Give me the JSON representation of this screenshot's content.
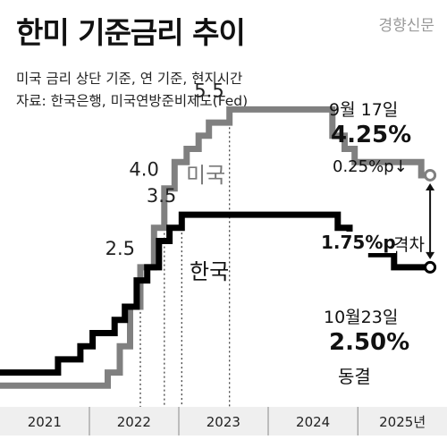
{
  "title": "한미 기준금리 추이",
  "publisher": "경향신문",
  "subtitle": "미국 금리 상단 기준, 연 기준, 현지시간",
  "source": "자료: 한국은행, 미국연방준비제도(Fed)",
  "colors": {
    "us": "#808080",
    "korea": "#000000",
    "axis_band": "#efefef",
    "background": "#ffffff"
  },
  "chart_data": {
    "type": "line",
    "step": true,
    "x_ticks": [
      "2021",
      "2022",
      "2023",
      "2024",
      "2025년"
    ],
    "xlim": [
      "2021-01-01",
      "2025-12-31"
    ],
    "ylim": [
      0,
      6
    ],
    "series": [
      {
        "name": "미국",
        "color": "#808080",
        "points": [
          [
            "2021-01-01",
            0.25
          ],
          [
            "2022-03-17",
            0.5
          ],
          [
            "2022-05-05",
            1.0
          ],
          [
            "2022-06-16",
            1.75
          ],
          [
            "2022-07-28",
            2.5
          ],
          [
            "2022-09-22",
            3.25
          ],
          [
            "2022-11-03",
            4.0
          ],
          [
            "2022-12-15",
            4.5
          ],
          [
            "2023-02-02",
            4.75
          ],
          [
            "2023-03-23",
            5.0
          ],
          [
            "2023-05-04",
            5.25
          ],
          [
            "2023-07-27",
            5.5
          ],
          [
            "2024-09-19",
            5.0
          ],
          [
            "2024-11-08",
            4.75
          ],
          [
            "2024-12-19",
            4.5
          ],
          [
            "2025-09-17",
            4.25
          ]
        ]
      },
      {
        "name": "한국",
        "color": "#000000",
        "points": [
          [
            "2021-01-01",
            0.5
          ],
          [
            "2021-08-26",
            0.75
          ],
          [
            "2021-11-25",
            1.0
          ],
          [
            "2022-01-14",
            1.25
          ],
          [
            "2022-04-14",
            1.5
          ],
          [
            "2022-05-26",
            1.75
          ],
          [
            "2022-07-13",
            2.25
          ],
          [
            "2022-08-25",
            2.5
          ],
          [
            "2022-10-12",
            3.0
          ],
          [
            "2022-11-24",
            3.25
          ],
          [
            "2023-01-13",
            3.5
          ],
          [
            "2024-10-11",
            3.25
          ],
          [
            "2024-11-28",
            3.0
          ],
          [
            "2025-02-25",
            2.75
          ],
          [
            "2025-05-29",
            2.5
          ],
          [
            "2025-10-23",
            2.5
          ]
        ]
      }
    ],
    "value_labels": [
      {
        "text": "2.5",
        "x": "2022-07-28",
        "y": 2.5
      },
      {
        "text": "4.0",
        "x": "2022-11-03",
        "y": 4.0
      },
      {
        "text": "3.5",
        "x": "2023-01-13",
        "y": 3.5
      },
      {
        "text": "5.5",
        "x": "2023-07-27",
        "y": 5.5
      }
    ],
    "series_labels": {
      "us": "미국",
      "korea": "한국"
    },
    "annotations": {
      "us_date": "9월 17일",
      "us_rate": "4.25%",
      "us_change": "0.25%p↓",
      "gap_value": "1.75%p",
      "gap_label": "격차",
      "kr_date": "10월23일",
      "kr_rate": "2.50%",
      "kr_change": "동결"
    }
  }
}
